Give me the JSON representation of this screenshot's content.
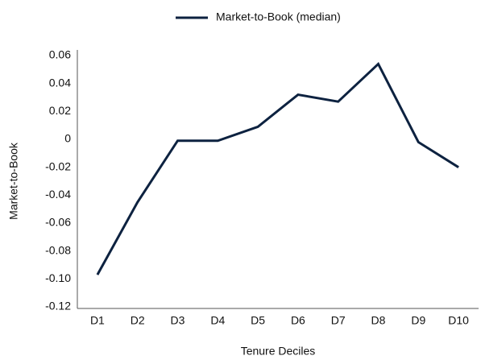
{
  "chart_data": {
    "type": "line",
    "categories": [
      "D1",
      "D2",
      "D3",
      "D4",
      "D5",
      "D6",
      "D7",
      "D8",
      "D9",
      "D10"
    ],
    "series": [
      {
        "name": "Market-to-Book (median)",
        "color": "#0d2240",
        "values": [
          -0.097,
          -0.045,
          -0.001,
          -0.001,
          0.009,
          0.032,
          0.027,
          0.054,
          -0.002,
          -0.02
        ]
      }
    ],
    "xlabel": "Tenure Deciles",
    "ylabel": "Market-to-Book",
    "ylim": [
      -0.12,
      0.06
    ],
    "yticks": [
      -0.12,
      {
        "value": -0.1,
        "label": "-0.10"
      },
      -0.08,
      -0.06,
      -0.04,
      -0.02,
      0,
      0.02,
      0.04,
      0.06
    ],
    "grid": false,
    "legend": "top"
  }
}
